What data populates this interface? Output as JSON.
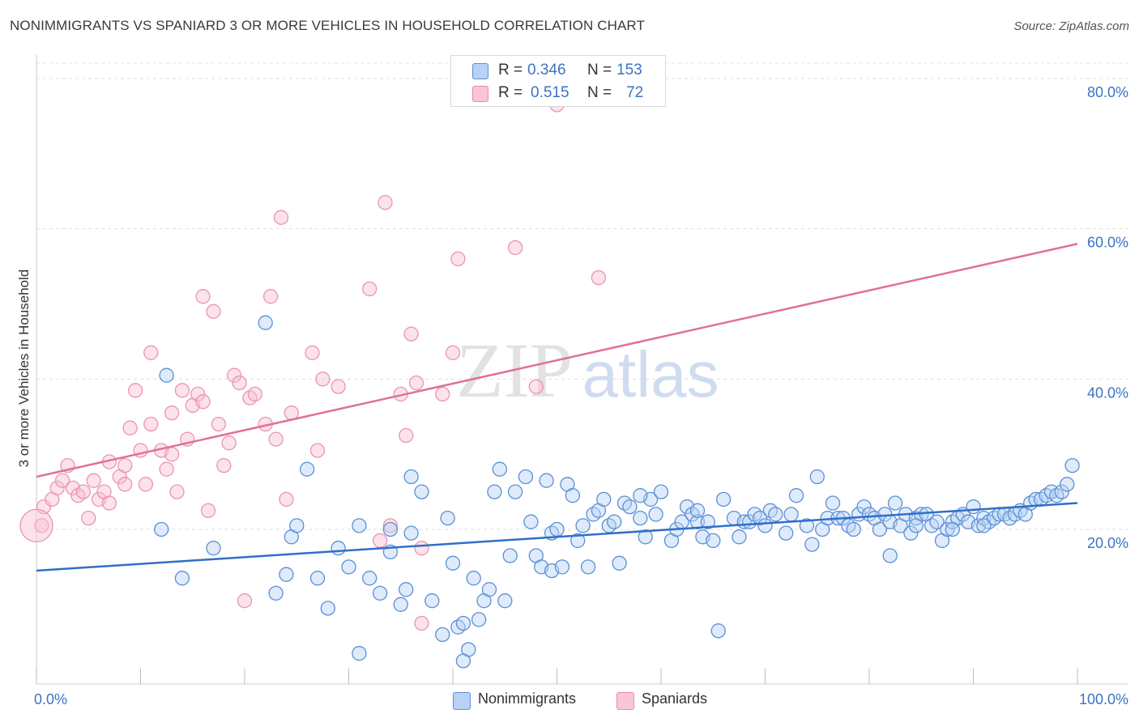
{
  "title": "NONIMMIGRANTS VS SPANIARD 3 OR MORE VEHICLES IN HOUSEHOLD CORRELATION CHART",
  "source": "Source: ZipAtlas.com",
  "watermark": {
    "zip": "ZIP",
    "atlas": "atlas"
  },
  "legend_top": [
    {
      "r_label": "R =",
      "r_value": "0.346",
      "n_label": "N =",
      "n_value": "153"
    },
    {
      "r_label": "R =",
      "r_value": "0.515",
      "n_label": "N =",
      "n_value": "72"
    }
  ],
  "chart_data": {
    "type": "scatter",
    "title": "NONIMMIGRANTS VS SPANIARD 3 OR MORE VEHICLES IN HOUSEHOLD CORRELATION CHART",
    "xlabel": "",
    "ylabel": "3 or more Vehicles in Household",
    "xlim": [
      0,
      100
    ],
    "ylim": [
      0,
      82
    ],
    "x_tick_labels": [
      "0.0%",
      "100.0%"
    ],
    "y_ticks": [
      20,
      40,
      60,
      80
    ],
    "y_tick_labels": [
      "20.0%",
      "40.0%",
      "60.0%",
      "80.0%"
    ],
    "grid": true,
    "legend_placement": "bottom",
    "colors": {
      "nonimmigrants": "#5b8fd6",
      "spaniards": "#e98aa8",
      "blue_line": "#2f6fc8",
      "pink_line": "#e0709a"
    },
    "series": [
      {
        "name": "Nonimmigrants",
        "r": 0.346,
        "n": 153,
        "trend": {
          "x": [
            0,
            100
          ],
          "y": [
            14.5,
            23.5
          ]
        },
        "points": [
          [
            12,
            20
          ],
          [
            12.5,
            40.5
          ],
          [
            14,
            13.5
          ],
          [
            17,
            17.5
          ],
          [
            22,
            47.5
          ],
          [
            23,
            11.5
          ],
          [
            24,
            14
          ],
          [
            24.5,
            19
          ],
          [
            25,
            20.5
          ],
          [
            26,
            28
          ],
          [
            27,
            13.5
          ],
          [
            28,
            9.5
          ],
          [
            29,
            17.5
          ],
          [
            30,
            15
          ],
          [
            31,
            3.5
          ],
          [
            31,
            20.5
          ],
          [
            32,
            13.5
          ],
          [
            33,
            11.5
          ],
          [
            34,
            17
          ],
          [
            34,
            20
          ],
          [
            35,
            10
          ],
          [
            35.5,
            12
          ],
          [
            36,
            27
          ],
          [
            36,
            19.5
          ],
          [
            37,
            25
          ],
          [
            38,
            10.5
          ],
          [
            39,
            6
          ],
          [
            39.5,
            21.5
          ],
          [
            40,
            15.5
          ],
          [
            40.5,
            7
          ],
          [
            41,
            7.5
          ],
          [
            41.5,
            4
          ],
          [
            41,
            2.5
          ],
          [
            42,
            13.5
          ],
          [
            42.5,
            8
          ],
          [
            43,
            10.5
          ],
          [
            43.5,
            12
          ],
          [
            44,
            25
          ],
          [
            44.5,
            28
          ],
          [
            45,
            10.5
          ],
          [
            45.5,
            16.5
          ],
          [
            46,
            25
          ],
          [
            47,
            27
          ],
          [
            47.5,
            21
          ],
          [
            48,
            16.5
          ],
          [
            48.5,
            15
          ],
          [
            49,
            26.5
          ],
          [
            49.5,
            14.5
          ],
          [
            49.5,
            19.5
          ],
          [
            50,
            20
          ],
          [
            50.5,
            15
          ],
          [
            51,
            26
          ],
          [
            51.5,
            24.5
          ],
          [
            52,
            18.5
          ],
          [
            52.5,
            20.5
          ],
          [
            53,
            15
          ],
          [
            53.5,
            22
          ],
          [
            54,
            22.5
          ],
          [
            54.5,
            24
          ],
          [
            55,
            20.5
          ],
          [
            55.5,
            21
          ],
          [
            56,
            15.5
          ],
          [
            56.5,
            23.5
          ],
          [
            57,
            23
          ],
          [
            58,
            21.5
          ],
          [
            58.5,
            19
          ],
          [
            59,
            24
          ],
          [
            60,
            25
          ],
          [
            61,
            18.5
          ],
          [
            61.5,
            20
          ],
          [
            62,
            21
          ],
          [
            62.5,
            23
          ],
          [
            63,
            22
          ],
          [
            63.5,
            21
          ],
          [
            64,
            19
          ],
          [
            64.5,
            21
          ],
          [
            65,
            18.5
          ],
          [
            65.5,
            6.5
          ],
          [
            66,
            24
          ],
          [
            67,
            21.5
          ],
          [
            67.5,
            19
          ],
          [
            68,
            21
          ],
          [
            68.5,
            21
          ],
          [
            69,
            22
          ],
          [
            69.5,
            21.5
          ],
          [
            70,
            20.5
          ],
          [
            70.5,
            22.5
          ],
          [
            71,
            22
          ],
          [
            72,
            19.5
          ],
          [
            72.5,
            22
          ],
          [
            73,
            24.5
          ],
          [
            74,
            20.5
          ],
          [
            74.5,
            18
          ],
          [
            75,
            27
          ],
          [
            75.5,
            20
          ],
          [
            76,
            21.5
          ],
          [
            76.5,
            23.5
          ],
          [
            77,
            21.5
          ],
          [
            77.5,
            21.5
          ],
          [
            78,
            20.5
          ],
          [
            78.5,
            20
          ],
          [
            79,
            22
          ],
          [
            79.5,
            23
          ],
          [
            80,
            22
          ],
          [
            80.5,
            21.5
          ],
          [
            81,
            20
          ],
          [
            81.5,
            22
          ],
          [
            82,
            21
          ],
          [
            82.5,
            23.5
          ],
          [
            82,
            16.5
          ],
          [
            83,
            20.5
          ],
          [
            83.5,
            22
          ],
          [
            84,
            19.5
          ],
          [
            84.5,
            21.5
          ],
          [
            85,
            22
          ],
          [
            85.5,
            22
          ],
          [
            86,
            20.5
          ],
          [
            86.5,
            21
          ],
          [
            87,
            18.5
          ],
          [
            87.5,
            20
          ],
          [
            88,
            21
          ],
          [
            88.5,
            21.5
          ],
          [
            89,
            22
          ],
          [
            89.5,
            21
          ],
          [
            90,
            23
          ],
          [
            90.5,
            20.5
          ],
          [
            91,
            21.5
          ],
          [
            91.5,
            21
          ],
          [
            92,
            21.5
          ],
          [
            92.5,
            22
          ],
          [
            93,
            22
          ],
          [
            93.5,
            21.5
          ],
          [
            94,
            22
          ],
          [
            94.5,
            22.5
          ],
          [
            95,
            22
          ],
          [
            95.5,
            23.5
          ],
          [
            96,
            24
          ],
          [
            96.5,
            24
          ],
          [
            97,
            24.5
          ],
          [
            97.5,
            25
          ],
          [
            98,
            24.5
          ],
          [
            98.5,
            25
          ],
          [
            99,
            26
          ],
          [
            99.5,
            28.5
          ],
          [
            58,
            24.5
          ],
          [
            59.5,
            22
          ],
          [
            63.5,
            22.5
          ],
          [
            91,
            20.5
          ],
          [
            88,
            20
          ],
          [
            84.5,
            20.5
          ]
        ]
      },
      {
        "name": "Spaniards",
        "r": 0.515,
        "n": 72,
        "trend": {
          "x": [
            0,
            100
          ],
          "y": [
            27,
            58
          ]
        },
        "points": [
          [
            0.5,
            20.5
          ],
          [
            0.7,
            23
          ],
          [
            1.5,
            24
          ],
          [
            2,
            25.5
          ],
          [
            2.5,
            26.5
          ],
          [
            3,
            28.5
          ],
          [
            3.5,
            25.5
          ],
          [
            4,
            24.5
          ],
          [
            4.5,
            25
          ],
          [
            5,
            21.5
          ],
          [
            5.5,
            26.5
          ],
          [
            6,
            24
          ],
          [
            6.5,
            25
          ],
          [
            7,
            23.5
          ],
          [
            7,
            29
          ],
          [
            8,
            27
          ],
          [
            8.5,
            26
          ],
          [
            8.5,
            28.5
          ],
          [
            9,
            33.5
          ],
          [
            9.5,
            38.5
          ],
          [
            10,
            30.5
          ],
          [
            10.5,
            26
          ],
          [
            11,
            43.5
          ],
          [
            11,
            34
          ],
          [
            12,
            30.5
          ],
          [
            12.5,
            28
          ],
          [
            13,
            30
          ],
          [
            13,
            35.5
          ],
          [
            13.5,
            25
          ],
          [
            14,
            38.5
          ],
          [
            14.5,
            32
          ],
          [
            15,
            36.5
          ],
          [
            15.5,
            38
          ],
          [
            16,
            37
          ],
          [
            16,
            51
          ],
          [
            16.5,
            22.5
          ],
          [
            17,
            49
          ],
          [
            17.5,
            34
          ],
          [
            18,
            28.5
          ],
          [
            18.5,
            31.5
          ],
          [
            19,
            40.5
          ],
          [
            19.5,
            39.5
          ],
          [
            20,
            10.5
          ],
          [
            20.5,
            37.5
          ],
          [
            21,
            38
          ],
          [
            22,
            34
          ],
          [
            22.5,
            51
          ],
          [
            23,
            32
          ],
          [
            23.5,
            61.5
          ],
          [
            24,
            24
          ],
          [
            24.5,
            35.5
          ],
          [
            26.5,
            43.5
          ],
          [
            27,
            30.5
          ],
          [
            27.5,
            40
          ],
          [
            29,
            39
          ],
          [
            32,
            52
          ],
          [
            33,
            18.5
          ],
          [
            33.5,
            63.5
          ],
          [
            34,
            20.5
          ],
          [
            35,
            38
          ],
          [
            35.5,
            32.5
          ],
          [
            36,
            46
          ],
          [
            36.5,
            39.5
          ],
          [
            37,
            17.5
          ],
          [
            37,
            7.5
          ],
          [
            39,
            38
          ],
          [
            40,
            43.5
          ],
          [
            40.5,
            56
          ],
          [
            46,
            57.5
          ],
          [
            50,
            76.5
          ],
          [
            54,
            53.5
          ],
          [
            48,
            39
          ]
        ]
      }
    ]
  },
  "legend_bottom": [
    {
      "label": "Nonimmigrants"
    },
    {
      "label": "Spaniards"
    }
  ]
}
